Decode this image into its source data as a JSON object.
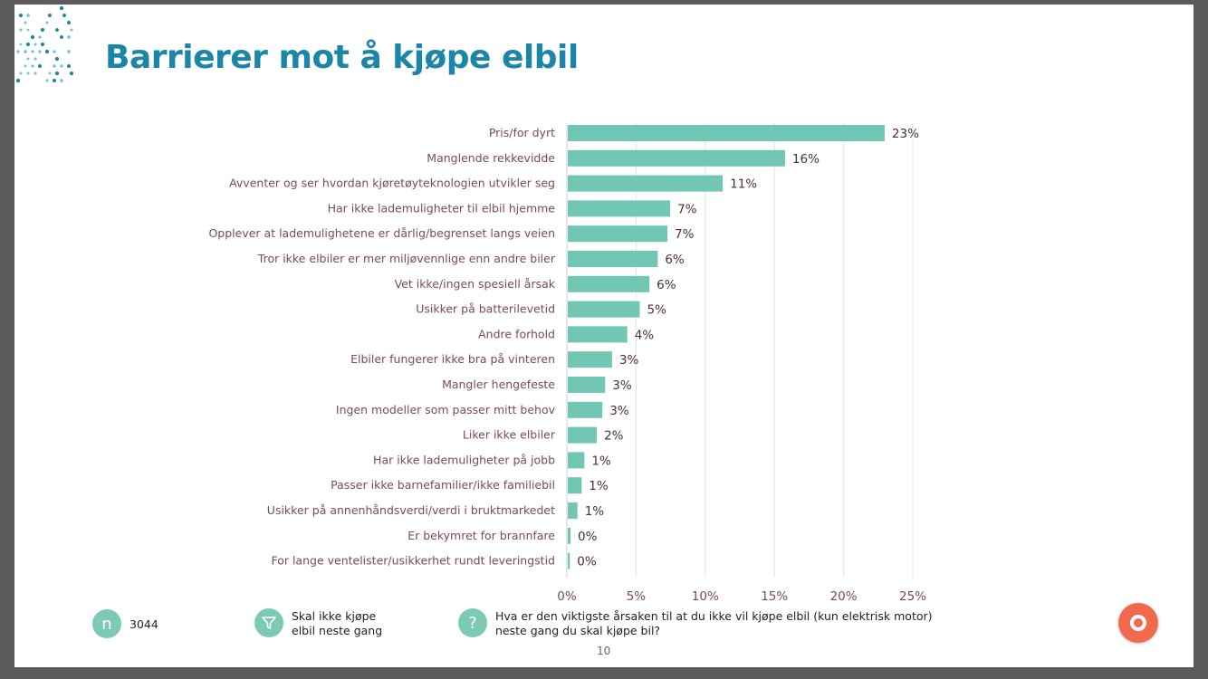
{
  "slide": {
    "title": "Barrierer mot å kjøpe elbil",
    "page_number": "10"
  },
  "footer": {
    "n_icon": "n",
    "n_value": "3044",
    "filter_icon": "filter-icon",
    "filter_text": "Skal ikke kjøpe elbil neste gang",
    "question_icon": "?",
    "question_text": "Hva er den viktigste årsaken til at du ikke vil kjøpe elbil (kun elektrisk motor) neste gang du skal kjøpe bil?"
  },
  "colors": {
    "title": "#1c86a8",
    "bar": "#72c6b4",
    "labels": "#7b4a57",
    "accent_button": "#f26a4d"
  },
  "chart_data": {
    "type": "bar",
    "orientation": "horizontal",
    "categories": [
      "Pris/for dyrt",
      "Manglende rekkevidde",
      "Avventer og ser hvordan kjøretøyteknologien utvikler seg",
      "Har ikke lademuligheter til elbil hjemme",
      "Opplever at lademulighetene er dårlig/begrenset langs veien",
      "Tror ikke elbiler er mer miljøvennlige enn andre biler",
      "Vet ikke/ingen spesiell årsak",
      "Usikker på batterilevetid",
      "Andre forhold",
      "Elbiler fungerer ikke bra på vinteren",
      "Mangler hengefeste",
      "Ingen modeller som passer mitt behov",
      "Liker ikke elbiler",
      "Har ikke lademuligheter på jobb",
      "Passer ikke barnefamilier/ikke familiebil",
      "Usikker på annenhåndsverdi/verdi i bruktmarkedet",
      "Er bekymret for brannfare",
      "For lange ventelister/usikkerhet rundt leveringstid"
    ],
    "values": [
      22.9,
      15.7,
      11.2,
      7.4,
      7.2,
      6.5,
      5.9,
      5.2,
      4.3,
      3.2,
      2.7,
      2.5,
      2.1,
      1.2,
      1.0,
      0.7,
      0.2,
      0.15
    ],
    "value_labels": [
      "23%",
      "16%",
      "11%",
      "7%",
      "7%",
      "6%",
      "6%",
      "5%",
      "4%",
      "3%",
      "3%",
      "3%",
      "2%",
      "1%",
      "1%",
      "1%",
      "0%",
      "0%"
    ],
    "xlim": [
      0,
      25
    ],
    "xticks": [
      0,
      5,
      10,
      15,
      20,
      25
    ],
    "xtick_labels": [
      "0%",
      "5%",
      "10%",
      "15%",
      "20%",
      "25%"
    ],
    "grid": true,
    "bar_color": "#72c6b4"
  }
}
